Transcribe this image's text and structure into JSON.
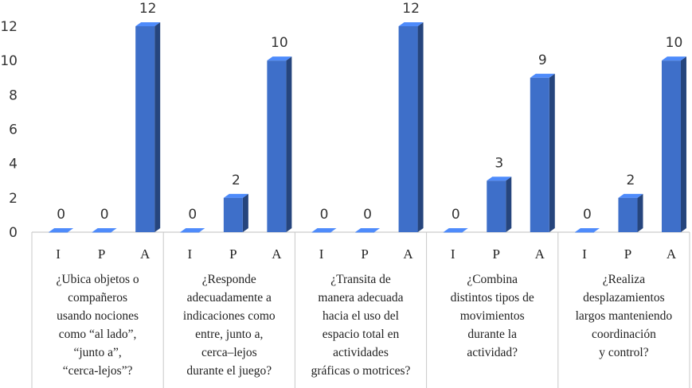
{
  "chart_data": {
    "type": "bar",
    "y_ticks": [
      "0",
      "2",
      "4",
      "6",
      "8",
      "10",
      "12"
    ],
    "ylim": [
      0,
      12
    ],
    "grid": false,
    "bar_color": "#3e6fc9",
    "groups": [
      {
        "question_lines": [
          "¿Ubica objetos o",
          "compañeros",
          "usando nociones",
          "como “al lado”,",
          "“junto a”,",
          "“cerca-lejos”?"
        ],
        "categories": [
          "I",
          "P",
          "A"
        ],
        "values": [
          0,
          0,
          12
        ],
        "labels": [
          "0",
          "0",
          "12"
        ]
      },
      {
        "question_lines": [
          "¿Responde",
          "adecuadamente a",
          "indicaciones como",
          "entre, junto a,",
          "cerca–lejos",
          "durante el juego?"
        ],
        "categories": [
          "I",
          "P",
          "A"
        ],
        "values": [
          0,
          2,
          10
        ],
        "labels": [
          "0",
          "2",
          "10"
        ]
      },
      {
        "question_lines": [
          "¿Transita de",
          "manera adecuada",
          "hacia el uso del",
          "espacio total en",
          "actividades",
          "gráficas o motrices?"
        ],
        "categories": [
          "I",
          "P",
          "A"
        ],
        "values": [
          0,
          0,
          12
        ],
        "labels": [
          "0",
          "0",
          "12"
        ]
      },
      {
        "question_lines": [
          "¿Combina",
          "distintos tipos de",
          "movimientos",
          "durante la",
          "actividad?"
        ],
        "categories": [
          "I",
          "P",
          "A"
        ],
        "values": [
          0,
          3,
          9
        ],
        "labels": [
          "0",
          "3",
          "9"
        ]
      },
      {
        "question_lines": [
          "¿Realiza",
          "desplazamientos",
          "largos manteniendo",
          "coordinación",
          "y control?"
        ],
        "categories": [
          "I",
          "P",
          "A"
        ],
        "values": [
          0,
          2,
          10
        ],
        "labels": [
          "0",
          "2",
          "10"
        ]
      }
    ]
  }
}
